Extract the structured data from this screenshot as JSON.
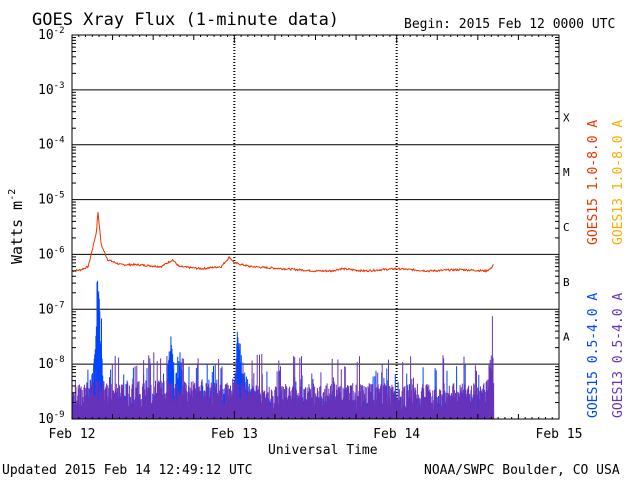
{
  "chart_data": {
    "type": "line",
    "title": "GOES Xray Flux (1-minute data)",
    "begin_label": "Begin:  2015 Feb 12 0000 UTC",
    "ylabel": "Watts m",
    "ylabel_exp": "-2",
    "xlabel": "Universal Time",
    "y_scale": "log",
    "ylim": [
      1e-09,
      0.01
    ],
    "y_ticks": [
      {
        "base": "10",
        "exp": "-9"
      },
      {
        "base": "10",
        "exp": "-8"
      },
      {
        "base": "10",
        "exp": "-7"
      },
      {
        "base": "10",
        "exp": "-6"
      },
      {
        "base": "10",
        "exp": "-5"
      },
      {
        "base": "10",
        "exp": "-4"
      },
      {
        "base": "10",
        "exp": "-3"
      },
      {
        "base": "10",
        "exp": "-2"
      }
    ],
    "x_ticks": [
      "Feb 12",
      "Feb 13",
      "Feb 14",
      "Feb 15"
    ],
    "xlim_days": [
      0,
      3
    ],
    "flare_classes": [
      "A",
      "B",
      "C",
      "M",
      "X"
    ],
    "grid": true,
    "legend_position": "right",
    "series": [
      {
        "name": "GOES15 1.0-8.0 A",
        "color": "#ee3300",
        "kind": "line",
        "points": [
          [
            0.0,
            5e-07
          ],
          [
            0.05,
            5.2e-07
          ],
          [
            0.1,
            6e-07
          ],
          [
            0.15,
            2.5e-06
          ],
          [
            0.16,
            6e-06
          ],
          [
            0.18,
            1.5e-06
          ],
          [
            0.22,
            8e-07
          ],
          [
            0.3,
            6.5e-07
          ],
          [
            0.4,
            6.5e-07
          ],
          [
            0.55,
            6e-07
          ],
          [
            0.62,
            8e-07
          ],
          [
            0.66,
            6e-07
          ],
          [
            0.8,
            5.5e-07
          ],
          [
            0.92,
            6e-07
          ],
          [
            0.97,
            9e-07
          ],
          [
            1.0,
            7e-07
          ],
          [
            1.1,
            6e-07
          ],
          [
            1.3,
            5.5e-07
          ],
          [
            1.5,
            5e-07
          ],
          [
            1.6,
            5e-07
          ],
          [
            1.66,
            5.5e-07
          ],
          [
            1.8,
            5e-07
          ],
          [
            2.0,
            5.5e-07
          ],
          [
            2.2,
            5e-07
          ],
          [
            2.4,
            5.3e-07
          ],
          [
            2.55,
            5e-07
          ],
          [
            2.58,
            5.5e-07
          ],
          [
            2.6,
            7e-07
          ]
        ]
      },
      {
        "name": "GOES13 1.0-8.0 A",
        "color": "#ffaa00",
        "kind": "line",
        "points": []
      },
      {
        "name": "GOES15 0.5-4.0 A",
        "color": "#0044ff",
        "kind": "noise",
        "points": [
          [
            0.0,
            1e-09
          ],
          [
            0.1,
            1.5e-09
          ],
          [
            0.14,
            1.2e-08
          ],
          [
            0.16,
            2.8e-07
          ],
          [
            0.18,
            1.5e-08
          ],
          [
            0.2,
            2e-09
          ],
          [
            0.3,
            1.5e-09
          ],
          [
            0.4,
            1.5e-09
          ],
          [
            0.5,
            2e-09
          ],
          [
            0.58,
            2e-09
          ],
          [
            0.61,
            3e-08
          ],
          [
            0.63,
            3e-09
          ],
          [
            0.66,
            1.2e-08
          ],
          [
            0.7,
            2e-09
          ],
          [
            0.9,
            1.8e-09
          ],
          [
            1.0,
            2.5e-09
          ],
          [
            1.02,
            4e-08
          ],
          [
            1.05,
            5e-09
          ],
          [
            1.2,
            1.5e-09
          ],
          [
            1.5,
            1.5e-09
          ],
          [
            2.0,
            1.5e-09
          ],
          [
            2.3,
            1.5e-09
          ],
          [
            2.5,
            2e-09
          ],
          [
            2.6,
            1.5e-09
          ]
        ]
      },
      {
        "name": "GOES13 0.5-4.0 A",
        "color": "#6633bb",
        "kind": "noise",
        "points": [
          [
            0.0,
            2e-09
          ],
          [
            0.1,
            3e-09
          ],
          [
            0.3,
            2.5e-09
          ],
          [
            0.5,
            3e-09
          ],
          [
            0.6,
            3e-09
          ],
          [
            0.7,
            3e-09
          ],
          [
            0.9,
            2.5e-09
          ],
          [
            1.0,
            3e-09
          ],
          [
            1.2,
            2.5e-09
          ],
          [
            1.5,
            2.5e-09
          ],
          [
            1.8,
            2.5e-09
          ],
          [
            2.0,
            2.5e-09
          ],
          [
            2.3,
            2.5e-09
          ],
          [
            2.55,
            2.5e-09
          ],
          [
            2.59,
            1.5e-08
          ],
          [
            2.6,
            3e-09
          ]
        ]
      }
    ]
  },
  "footer": {
    "updated": "Updated 2015 Feb 14 12:49:12 UTC",
    "source": "NOAA/SWPC Boulder, CO USA"
  }
}
